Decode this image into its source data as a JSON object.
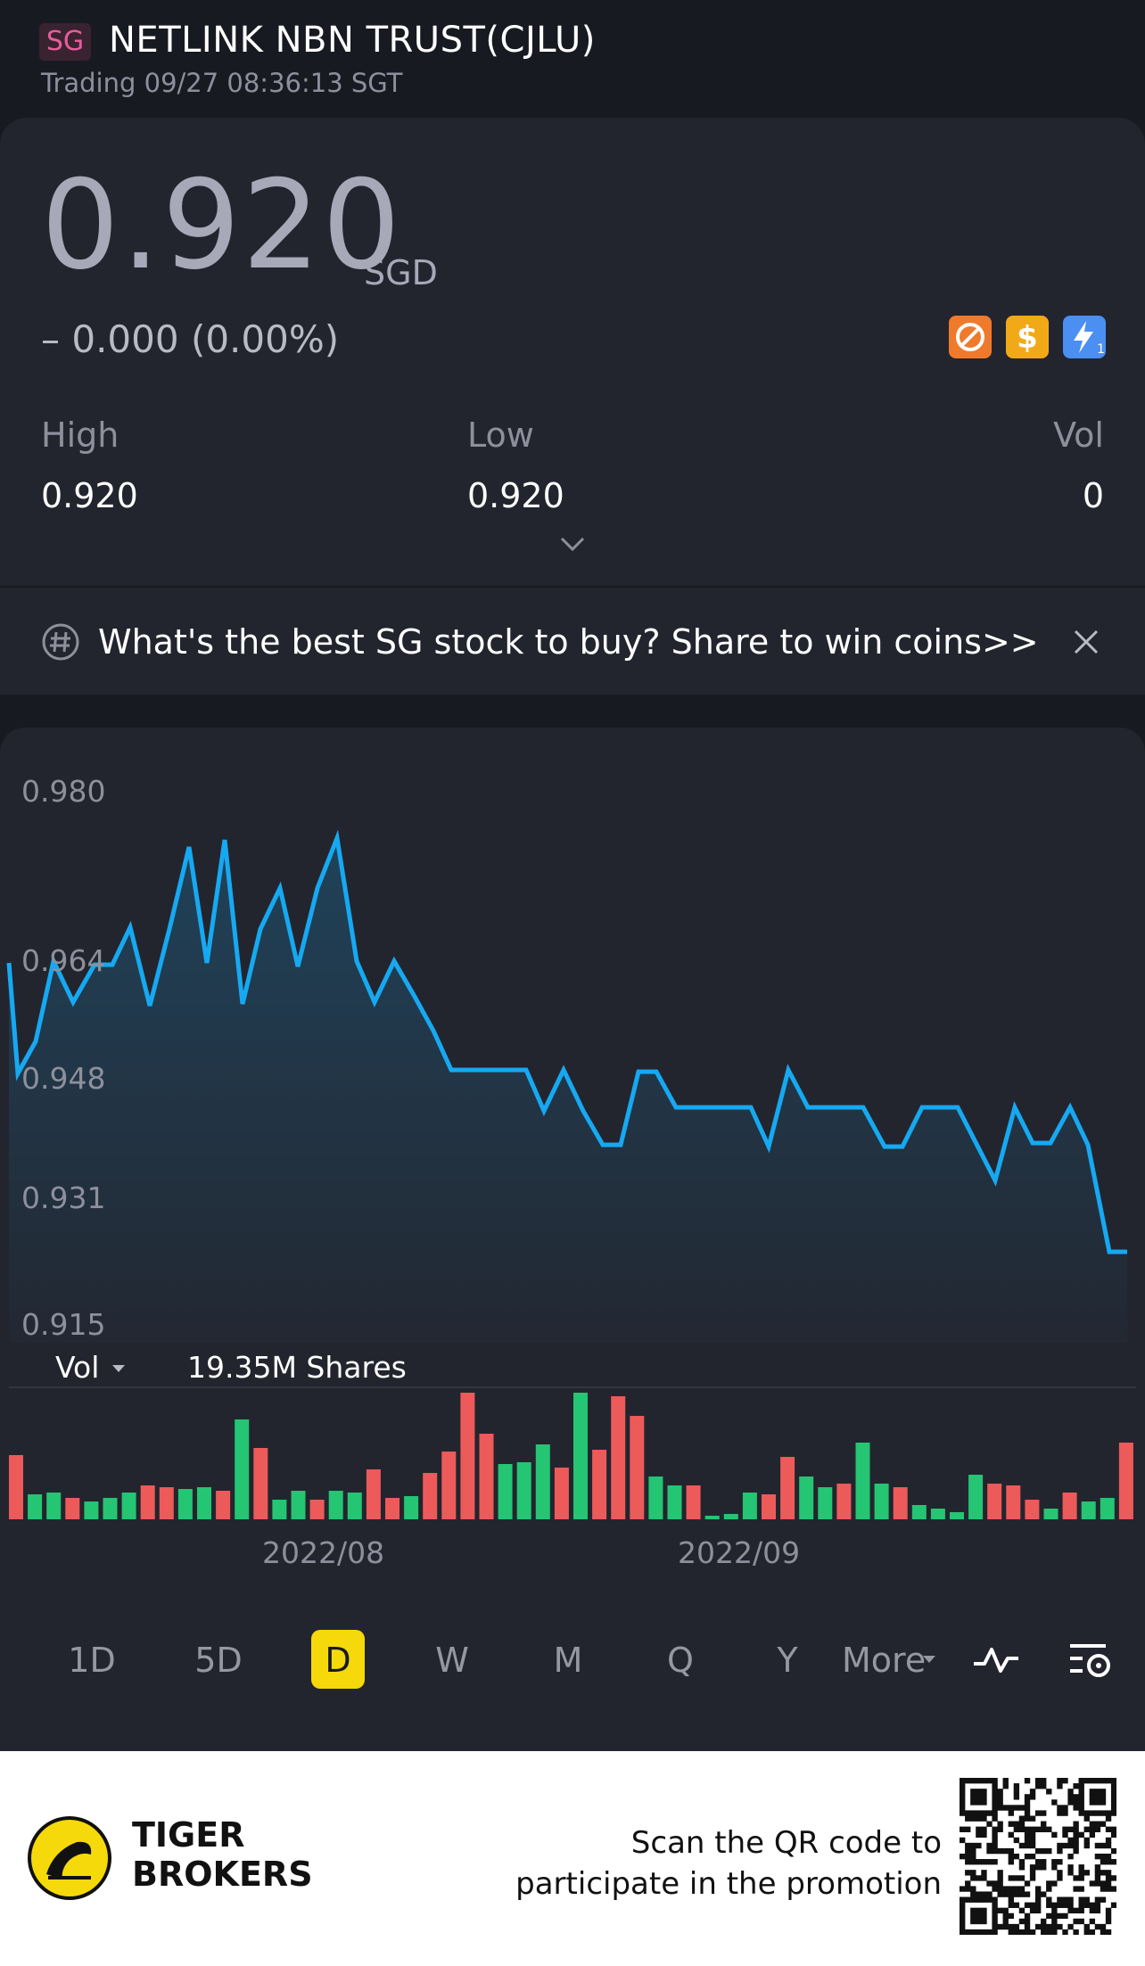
{
  "header": {
    "market_badge": "SG",
    "title": "NETLINK NBN TRUST(CJLU)",
    "status": "Trading 09/27 08:36:13 SGT"
  },
  "quote": {
    "price": "0.920",
    "currency": "SGD",
    "change": "– 0.000 (0.00%)",
    "stats": {
      "high_label": "High",
      "high_value": "0.920",
      "low_label": "Low",
      "low_value": "0.920",
      "vol_label": "Vol",
      "vol_value": "0"
    }
  },
  "promo": {
    "text": "What's the best SG stock to buy? Share to win coins>>"
  },
  "chart": {
    "y_ticks": [
      "0.980",
      "0.964",
      "0.948",
      "0.931",
      "0.915"
    ],
    "volume_selector": "Vol",
    "volume_value": "19.35M Shares",
    "x_ticks": [
      "2022/08",
      "2022/09"
    ]
  },
  "periods": [
    "1D",
    "5D",
    "D",
    "W",
    "M",
    "Q",
    "Y",
    "More"
  ],
  "active_period": "D",
  "footer": {
    "brand_line1": "TIGER",
    "brand_line2": "BROKERS",
    "scan_line1": "Scan the QR code to",
    "scan_line2": "participate in the promotion"
  },
  "colors": {
    "price_line": "#16a9f2",
    "vol_up": "#24c573",
    "vol_down": "#ed5a5a",
    "accent": "#f5d90a"
  }
}
